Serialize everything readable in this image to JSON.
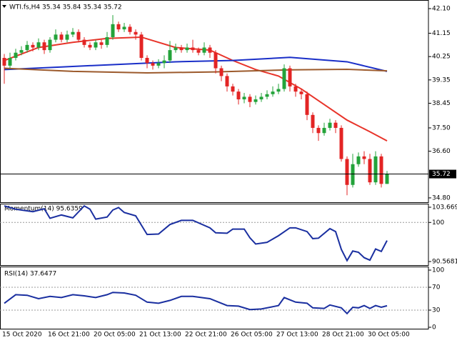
{
  "chart_data": [
    {
      "type": "candlestick",
      "title": "WTI.fs,H4 35.34 35.84 35.34 35.72",
      "categories": [
        "15 Oct 2020",
        null,
        null,
        null,
        null,
        null,
        null,
        null,
        "16 Oct 21:00",
        null,
        null,
        null,
        null,
        null,
        null,
        null,
        "20 Oct 05:00",
        null,
        null,
        null,
        null,
        null,
        null,
        null,
        "21 Oct 13:00",
        null,
        null,
        null,
        null,
        null,
        null,
        null,
        "22 Oct 21:00",
        null,
        null,
        null,
        null,
        null,
        null,
        null,
        "26 Oct 05:00",
        null,
        null,
        null,
        null,
        null,
        null,
        null,
        "27 Oct 13:00",
        null,
        null,
        null,
        null,
        null,
        null,
        null,
        "28 Oct 21:00",
        null,
        null,
        null,
        null,
        null,
        null,
        null,
        "30 Oct 05:00",
        null,
        null,
        null
      ],
      "open": [
        40.2,
        39.9,
        40.2,
        40.4,
        40.5,
        40.7,
        40.6,
        40.8,
        40.5,
        40.9,
        41.1,
        40.9,
        41.1,
        41.2,
        40.9,
        40.7,
        40.6,
        40.8,
        40.7,
        41.0,
        41.5,
        41.3,
        41.4,
        41.2,
        41.1,
        40.2,
        40.0,
        39.9,
        40.0,
        40.1,
        40.5,
        40.6,
        40.5,
        40.6,
        40.5,
        40.4,
        40.6,
        40.4,
        39.8,
        39.5,
        39.1,
        38.9,
        38.6,
        38.7,
        38.5,
        38.6,
        38.7,
        38.8,
        38.9,
        39.0,
        39.8,
        39.1,
        38.9,
        38.8,
        38.0,
        37.5,
        37.3,
        37.5,
        37.7,
        37.5,
        36.3,
        35.3,
        36.1,
        36.4,
        36.3,
        35.4,
        36.4,
        35.34
      ],
      "high": [
        40.35,
        40.4,
        40.55,
        40.65,
        40.85,
        40.8,
        40.95,
        40.9,
        41.0,
        41.3,
        41.2,
        41.25,
        41.35,
        41.3,
        41.0,
        40.8,
        40.9,
        40.9,
        41.2,
        41.85,
        41.6,
        41.55,
        41.5,
        41.3,
        41.2,
        40.3,
        40.1,
        40.15,
        40.3,
        40.85,
        40.75,
        40.7,
        40.75,
        40.9,
        40.6,
        40.8,
        40.7,
        40.5,
        39.9,
        39.6,
        39.2,
        39.0,
        38.85,
        38.8,
        38.75,
        38.85,
        38.95,
        39.1,
        39.2,
        39.95,
        39.9,
        39.2,
        39.0,
        38.9,
        38.1,
        37.6,
        37.7,
        37.85,
        37.8,
        37.6,
        36.4,
        36.5,
        36.55,
        36.6,
        36.5,
        36.6,
        36.5,
        35.84
      ],
      "low": [
        39.2,
        39.8,
        40.1,
        40.3,
        40.4,
        40.45,
        40.5,
        40.35,
        40.4,
        40.8,
        40.8,
        40.8,
        41.0,
        40.8,
        40.6,
        40.5,
        40.5,
        40.55,
        40.6,
        40.9,
        41.2,
        41.2,
        41.1,
        40.9,
        40.1,
        39.8,
        39.75,
        39.8,
        39.8,
        40.0,
        40.4,
        40.4,
        40.4,
        40.4,
        40.3,
        40.3,
        40.2,
        39.6,
        39.3,
        38.9,
        38.75,
        38.4,
        38.45,
        38.3,
        38.4,
        38.5,
        38.6,
        38.7,
        38.8,
        38.9,
        38.9,
        38.7,
        38.6,
        37.8,
        37.3,
        37.0,
        37.2,
        37.4,
        37.3,
        36.2,
        34.9,
        35.2,
        36.0,
        36.1,
        35.3,
        35.3,
        35.2,
        35.34
      ],
      "close": [
        39.9,
        40.2,
        40.4,
        40.5,
        40.7,
        40.6,
        40.8,
        40.5,
        40.9,
        41.1,
        40.9,
        41.1,
        41.2,
        40.9,
        40.7,
        40.6,
        40.8,
        40.7,
        41.0,
        41.5,
        41.3,
        41.4,
        41.2,
        41.1,
        40.2,
        40.0,
        39.9,
        40.0,
        40.1,
        40.5,
        40.6,
        40.5,
        40.6,
        40.5,
        40.4,
        40.6,
        40.4,
        39.8,
        39.5,
        39.1,
        38.9,
        38.6,
        38.7,
        38.5,
        38.6,
        38.7,
        38.8,
        38.9,
        39.0,
        39.8,
        39.1,
        38.9,
        38.8,
        38.0,
        37.5,
        37.3,
        37.5,
        37.7,
        37.5,
        36.3,
        35.3,
        36.1,
        36.4,
        36.3,
        35.4,
        36.4,
        35.34,
        35.72
      ],
      "up_color": "#23a33a",
      "down_color": "#e32424",
      "series": [
        {
          "color": "#e8342a",
          "x": [
            0,
            6,
            12,
            18,
            24,
            30,
            36,
            40,
            44,
            48,
            52,
            56,
            60,
            64,
            67
          ],
          "values": [
            40.1,
            40.6,
            40.8,
            40.95,
            41.0,
            40.6,
            40.5,
            40.1,
            39.75,
            39.5,
            39.0,
            38.4,
            37.8,
            37.35,
            37.0
          ]
        },
        {
          "color": "#1a2fc8",
          "x": [
            0,
            10,
            20,
            30,
            40,
            50,
            60,
            67
          ],
          "values": [
            39.75,
            39.85,
            39.95,
            40.05,
            40.1,
            40.22,
            40.05,
            39.68
          ]
        },
        {
          "color": "#9c5a2c",
          "x": [
            0,
            12,
            25,
            37,
            50,
            60,
            67
          ],
          "values": [
            39.8,
            39.68,
            39.62,
            39.66,
            39.74,
            39.76,
            39.7
          ]
        }
      ],
      "ylim": [
        34.66,
        42.35
      ],
      "yticks": [
        {
          "value": 42.1,
          "label": "42.10"
        },
        41.15,
        40.25,
        39.35,
        38.45,
        {
          "value": 37.5,
          "label": "37.50"
        },
        {
          "value": 36.6,
          "label": "36.60"
        },
        {
          "value": 34.8,
          "label": "34.80"
        }
      ],
      "grid": false
    },
    {
      "type": "line",
      "title": "Momentum(14) 95.6359",
      "color": "#1a2fa0",
      "x": [
        0,
        2,
        5,
        7,
        8,
        10,
        12,
        14,
        15,
        16,
        18,
        19,
        20,
        21,
        23,
        25,
        27,
        29,
        31,
        33,
        36,
        37,
        39,
        40,
        42,
        43,
        44,
        46,
        48,
        50,
        51,
        53,
        54,
        55,
        57,
        58,
        59,
        60,
        61,
        62,
        63,
        64,
        65,
        66,
        67
      ],
      "values": [
        104.0,
        103.2,
        102.6,
        103.3,
        101.0,
        101.8,
        101.1,
        104.0,
        103.2,
        100.8,
        101.3,
        103.0,
        103.6,
        102.4,
        101.6,
        97.1,
        97.2,
        99.5,
        100.5,
        100.5,
        98.7,
        97.5,
        97.4,
        98.4,
        98.4,
        96.3,
        94.8,
        95.2,
        96.8,
        98.7,
        98.7,
        97.8,
        96.1,
        96.2,
        98.5,
        97.8,
        93.5,
        90.8,
        93.1,
        92.8,
        91.5,
        90.9,
        93.6,
        93.0,
        95.6359
      ],
      "ylim": [
        90.5681,
        103.6693
      ],
      "yticks": [
        90.5681,
        100,
        103.6693
      ],
      "grid": true
    },
    {
      "type": "line",
      "title": "RSI(14) 37.6477",
      "color": "#1a2fa0",
      "x": [
        0,
        2,
        4,
        6,
        8,
        10,
        12,
        14,
        16,
        18,
        19,
        21,
        23,
        25,
        27,
        29,
        31,
        33,
        36,
        37,
        39,
        41,
        43,
        45,
        47,
        48,
        49,
        51,
        53,
        54,
        56,
        57,
        59,
        60,
        61,
        62,
        63,
        64,
        65,
        66,
        67
      ],
      "values": [
        42,
        57,
        56,
        50,
        54,
        52,
        57,
        55,
        52,
        57,
        61,
        60,
        56,
        44,
        42,
        47,
        54,
        54,
        50,
        46,
        38,
        37,
        31,
        32,
        36,
        38,
        52,
        44,
        42,
        34,
        33,
        39,
        34,
        24,
        35,
        34,
        38,
        33,
        38,
        35,
        37.6477
      ],
      "ylim": [
        0,
        100
      ],
      "yticks": [
        0,
        30,
        70,
        100
      ],
      "grid": true
    }
  ]
}
